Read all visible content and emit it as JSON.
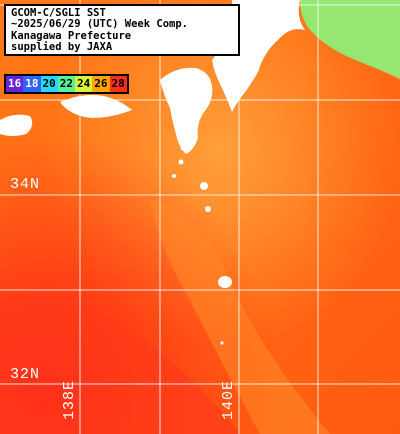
{
  "title_lines": [
    "GCOM-C/SGLI SST",
    "~2025/06/29 (UTC) Week Comp.",
    "Kanagawa Prefecture",
    "supplied by JAXA"
  ],
  "legend": {
    "items": [
      {
        "label": "16",
        "bg": "#6a22d8",
        "fg": "#ffffff"
      },
      {
        "label": "18",
        "bg": "#2f63ff",
        "fg": "#ffffff"
      },
      {
        "label": "20",
        "bg": "#27d7ff",
        "fg": "#000000"
      },
      {
        "label": "22",
        "bg": "#58f09a",
        "fg": "#000000"
      },
      {
        "label": "24",
        "bg": "#d7f43a",
        "fg": "#000000"
      },
      {
        "label": "26",
        "bg": "#ffa400",
        "fg": "#000000"
      },
      {
        "label": "28",
        "bg": "#ff2e1a",
        "fg": "#000000"
      }
    ]
  },
  "grid": {
    "lat_labels": [
      "34N",
      "32N"
    ],
    "lon_labels": [
      "138E",
      "140E"
    ]
  },
  "colors": {
    "land": "#ffffff",
    "grid": "#ffffff",
    "warm_sea": "#ff6a12",
    "hot_sea": "#ff2a1c",
    "cool_sea": "#ffb040",
    "coastal_cool": "#8af07a"
  }
}
